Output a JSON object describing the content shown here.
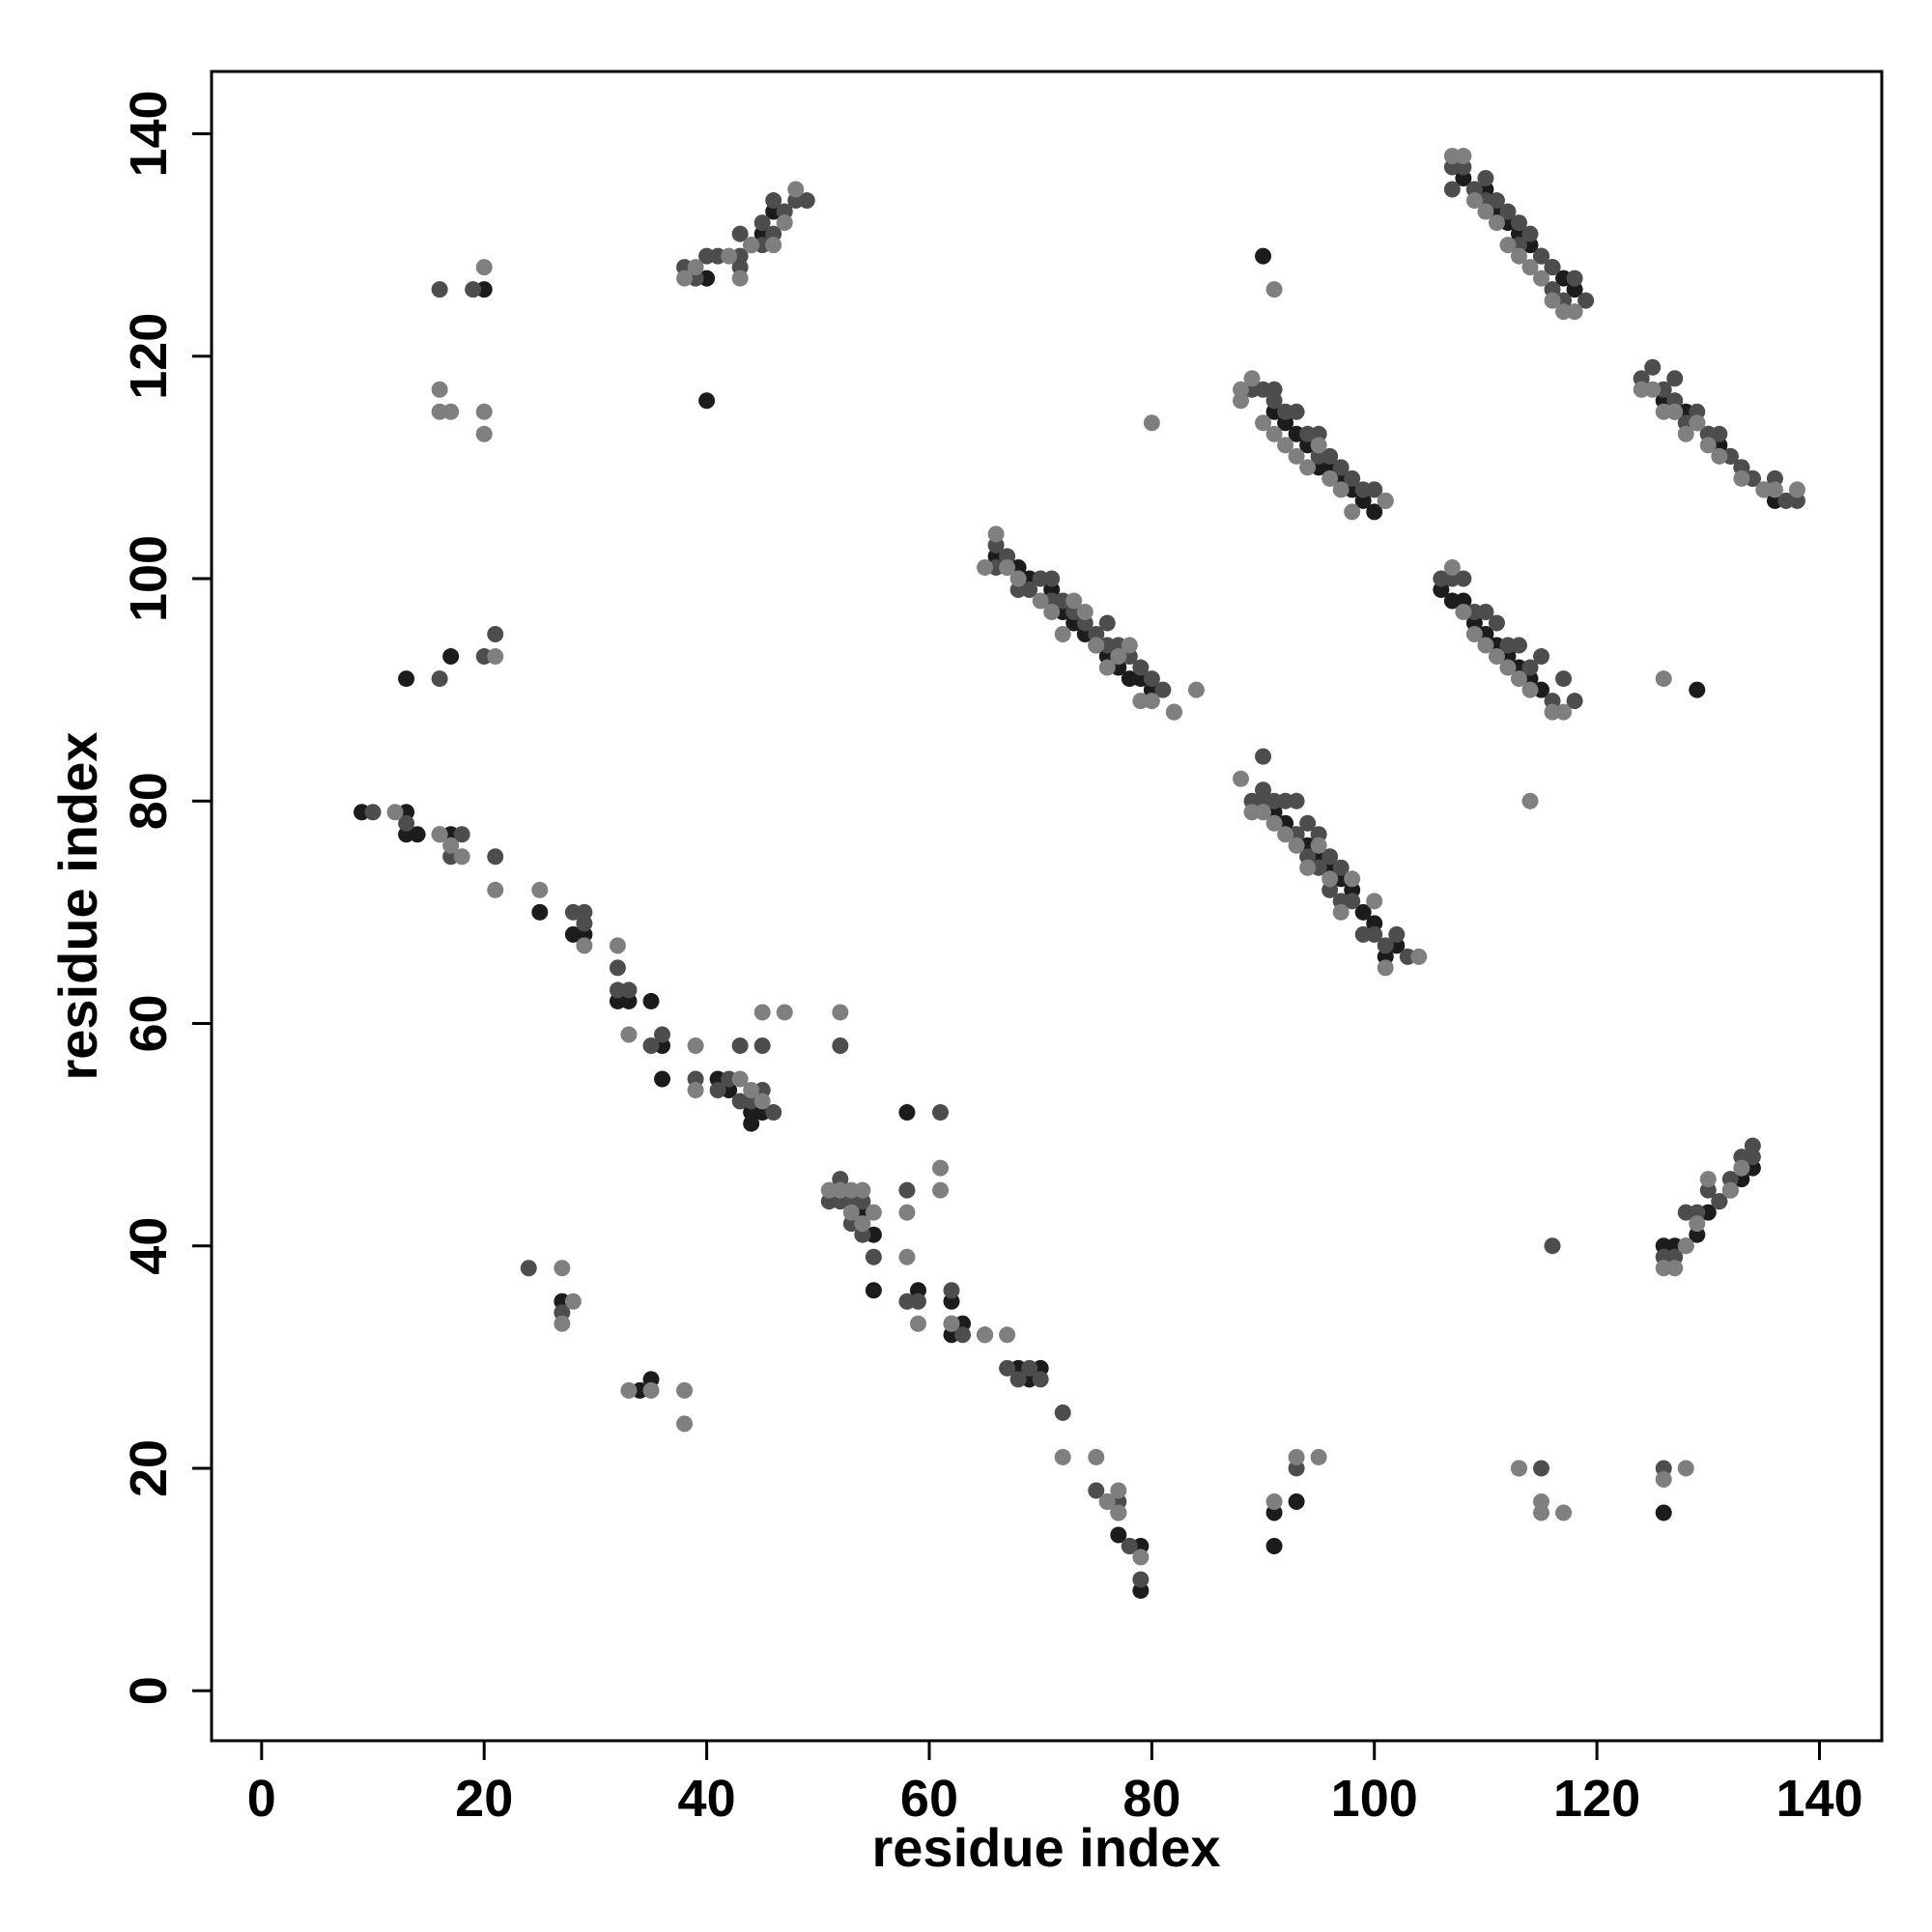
{
  "chart_data": {
    "type": "scatter",
    "xlabel": "residue index",
    "ylabel": "residue index",
    "xlim": [
      -4.5,
      145.6
    ],
    "ylim": [
      -4.5,
      145.6
    ],
    "xticks": [
      0,
      20,
      40,
      60,
      80,
      100,
      120,
      140
    ],
    "yticks": [
      0,
      20,
      40,
      60,
      80,
      100,
      120,
      140
    ],
    "series": [
      {
        "color": "#1c1c1c",
        "x": [
          9,
          13,
          14,
          13,
          17,
          25,
          28,
          29,
          32,
          33,
          35,
          36,
          36,
          41,
          42,
          44,
          45,
          44,
          52,
          54,
          55,
          55,
          58,
          59,
          62,
          62,
          63,
          65,
          68,
          69,
          70,
          77,
          77,
          78,
          79,
          79,
          27,
          34,
          35,
          13,
          17,
          20,
          40,
          40,
          44,
          45,
          46,
          66,
          67,
          68,
          69,
          71,
          72,
          73,
          74,
          75,
          76,
          77,
          78,
          79,
          80,
          91,
          92,
          93,
          94,
          95,
          96,
          97,
          98,
          99,
          100,
          101,
          102,
          91,
          92,
          93,
          94,
          95,
          96,
          97,
          98,
          99,
          100,
          90,
          108,
          109,
          110,
          111,
          112,
          113,
          114,
          115,
          116,
          117,
          118,
          106,
          107,
          108,
          109,
          110,
          111,
          112,
          113,
          114,
          115,
          129,
          126,
          127,
          128,
          129,
          130,
          131,
          132,
          133,
          134,
          135,
          136,
          126,
          127,
          128,
          129,
          130,
          131,
          132,
          133,
          134,
          91,
          91,
          93,
          126
        ],
        "values": [
          79,
          79,
          77,
          77,
          77,
          70,
          68,
          68,
          62,
          62,
          62,
          58,
          55,
          55,
          54,
          52,
          52,
          51,
          45,
          43,
          41,
          36,
          52,
          36,
          35,
          32,
          33,
          32,
          29,
          28,
          29,
          16,
          14,
          13,
          13,
          9,
          35,
          27,
          28,
          91,
          93,
          126,
          116,
          127,
          130,
          131,
          133,
          102,
          101,
          101,
          100,
          99,
          97,
          96,
          95,
          94,
          93,
          92,
          91,
          91,
          90,
          79,
          78,
          77,
          76,
          75,
          74,
          73,
          72,
          70,
          69,
          66,
          67,
          115,
          114,
          113,
          112,
          110,
          110,
          109,
          108,
          107,
          106,
          129,
          136,
          135,
          135,
          133,
          132,
          131,
          130,
          129,
          128,
          127,
          126,
          99,
          98,
          98,
          96,
          95,
          94,
          93,
          92,
          91,
          90,
          90,
          116,
          115,
          115,
          114,
          113,
          112,
          111,
          110,
          109,
          108,
          107,
          40,
          40,
          40,
          41,
          43,
          44,
          45,
          46,
          47,
          16,
          13,
          17,
          16
        ]
      },
      {
        "color": "#4d4d4d",
        "x": [
          10,
          13,
          16,
          17,
          18,
          21,
          28,
          29,
          29,
          32,
          32,
          33,
          35,
          36,
          39,
          41,
          42,
          43,
          43,
          44,
          45,
          45,
          46,
          52,
          51,
          52,
          52,
          53,
          53,
          54,
          54,
          55,
          58,
          58,
          59,
          61,
          62,
          62,
          63,
          67,
          68,
          69,
          70,
          72,
          75,
          76,
          77,
          78,
          79,
          24,
          27,
          16,
          16,
          19,
          20,
          21,
          38,
          39,
          40,
          41,
          43,
          43,
          43,
          45,
          45,
          46,
          46,
          47,
          48,
          49,
          66,
          66,
          67,
          68,
          69,
          70,
          71,
          71,
          72,
          73,
          74,
          75,
          76,
          76,
          77,
          78,
          79,
          80,
          81,
          82,
          89,
          90,
          90,
          91,
          92,
          93,
          93,
          94,
          94,
          95,
          95,
          96,
          96,
          97,
          97,
          98,
          99,
          100,
          101,
          102,
          103,
          89,
          90,
          91,
          91,
          92,
          93,
          94,
          95,
          95,
          96,
          97,
          98,
          99,
          100,
          101,
          107,
          107,
          108,
          109,
          110,
          110,
          111,
          112,
          113,
          113,
          114,
          115,
          116,
          116,
          117,
          118,
          119,
          106,
          107,
          108,
          109,
          110,
          111,
          112,
          113,
          114,
          115,
          116,
          117,
          118,
          124,
          125,
          126,
          127,
          127,
          128,
          129,
          130,
          131,
          132,
          133,
          134,
          135,
          136,
          137,
          138,
          126,
          127,
          128,
          129,
          130,
          131,
          132,
          133,
          134,
          134,
          116,
          93,
          113,
          115,
          126,
          90
        ],
        "values": [
          79,
          78,
          77,
          75,
          77,
          75,
          70,
          70,
          69,
          65,
          63,
          63,
          58,
          59,
          55,
          54,
          55,
          53,
          58,
          53,
          54,
          58,
          52,
          58,
          44,
          46,
          44,
          44,
          42,
          44,
          41,
          39,
          45,
          35,
          35,
          52,
          36,
          33,
          32,
          29,
          28,
          29,
          28,
          25,
          18,
          17,
          17,
          13,
          10,
          38,
          34,
          126,
          91,
          126,
          93,
          95,
          128,
          127,
          129,
          129,
          131,
          129,
          128,
          132,
          130,
          134,
          131,
          133,
          134,
          134,
          103,
          101,
          102,
          99,
          99,
          100,
          100,
          98,
          98,
          97,
          96,
          95,
          96,
          94,
          94,
          93,
          92,
          91,
          90,
          88,
          80,
          81,
          80,
          80,
          80,
          80,
          77,
          78,
          75,
          77,
          74,
          75,
          72,
          74,
          71,
          71,
          68,
          68,
          67,
          68,
          66,
          117,
          117,
          117,
          116,
          115,
          115,
          113,
          113,
          111,
          111,
          110,
          109,
          108,
          108,
          107,
          137,
          135,
          137,
          135,
          136,
          134,
          134,
          133,
          132,
          130,
          131,
          129,
          128,
          126,
          125,
          127,
          125,
          100,
          100,
          100,
          97,
          97,
          96,
          94,
          94,
          92,
          93,
          89,
          91,
          89,
          118,
          119,
          117,
          118,
          116,
          114,
          115,
          113,
          113,
          111,
          110,
          109,
          108,
          109,
          107,
          107,
          39,
          39,
          43,
          43,
          45,
          44,
          46,
          48,
          49,
          48,
          40,
          20,
          20,
          20,
          20,
          84
        ]
      },
      {
        "color": "#7f7f7f",
        "x": [
          12,
          16,
          17,
          18,
          21,
          25,
          29,
          32,
          33,
          39,
          39,
          43,
          44,
          45,
          45,
          47,
          52,
          51,
          52,
          53,
          53,
          54,
          54,
          55,
          58,
          58,
          59,
          61,
          61,
          62,
          65,
          67,
          72,
          75,
          76,
          77,
          77,
          79,
          27,
          27,
          28,
          33,
          35,
          38,
          38,
          16,
          16,
          17,
          20,
          20,
          20,
          21,
          38,
          39,
          42,
          43,
          44,
          46,
          47,
          48,
          65,
          66,
          67,
          68,
          70,
          71,
          72,
          73,
          74,
          75,
          76,
          77,
          78,
          79,
          80,
          82,
          84,
          80,
          88,
          89,
          90,
          91,
          92,
          93,
          94,
          95,
          96,
          97,
          98,
          100,
          101,
          104,
          88,
          88,
          89,
          90,
          91,
          92,
          93,
          94,
          95,
          96,
          97,
          98,
          101,
          91,
          107,
          108,
          109,
          110,
          111,
          112,
          113,
          114,
          115,
          116,
          117,
          118,
          107,
          108,
          109,
          110,
          111,
          112,
          113,
          114,
          116,
          117,
          126,
          124,
          125,
          126,
          127,
          128,
          129,
          130,
          131,
          133,
          135,
          136,
          138,
          126,
          127,
          128,
          129,
          130,
          132,
          133,
          91,
          93,
          95,
          113,
          115,
          115,
          117,
          126,
          128,
          114
        ],
        "values": [
          79,
          77,
          76,
          75,
          72,
          72,
          67,
          67,
          59,
          58,
          54,
          55,
          54,
          53,
          61,
          61,
          61,
          45,
          45,
          45,
          43,
          45,
          42,
          43,
          43,
          39,
          33,
          47,
          45,
          33,
          32,
          32,
          21,
          21,
          17,
          18,
          16,
          12,
          38,
          33,
          35,
          27,
          27,
          27,
          24,
          117,
          115,
          115,
          115,
          113,
          128,
          93,
          127,
          128,
          129,
          127,
          130,
          130,
          132,
          135,
          101,
          104,
          101,
          100,
          98,
          97,
          95,
          98,
          97,
          94,
          92,
          93,
          94,
          89,
          89,
          88,
          90,
          114,
          82,
          79,
          79,
          78,
          77,
          76,
          74,
          76,
          73,
          70,
          73,
          71,
          65,
          66,
          117,
          116,
          118,
          114,
          113,
          112,
          111,
          110,
          112,
          109,
          108,
          106,
          107,
          126,
          138,
          138,
          134,
          133,
          132,
          130,
          129,
          128,
          127,
          125,
          124,
          124,
          101,
          97,
          95,
          94,
          93,
          92,
          91,
          90,
          88,
          88,
          91,
          117,
          117,
          115,
          115,
          113,
          114,
          112,
          111,
          109,
          108,
          108,
          108,
          38,
          38,
          40,
          42,
          46,
          45,
          47,
          17,
          21,
          21,
          20,
          17,
          16,
          16,
          19,
          20,
          80
        ]
      }
    ]
  }
}
